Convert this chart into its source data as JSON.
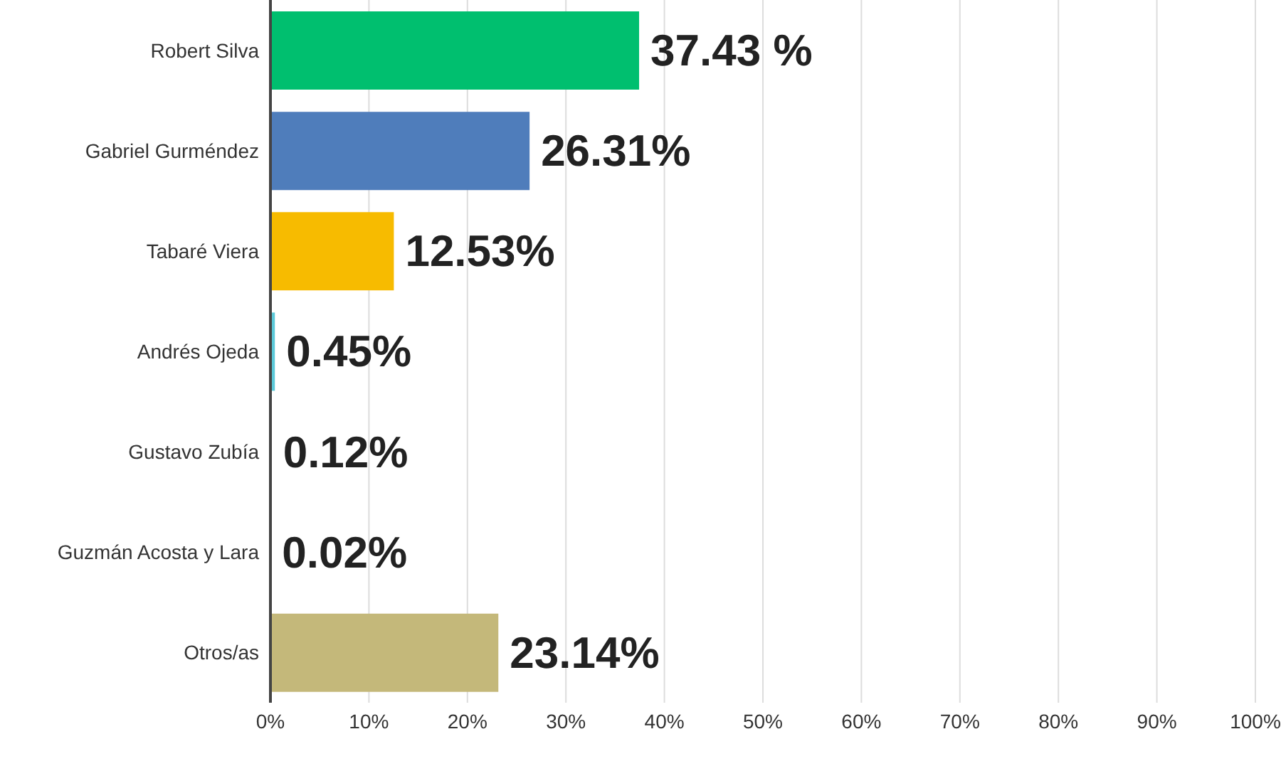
{
  "chart_data": {
    "type": "bar",
    "orientation": "horizontal",
    "categories": [
      "Robert Silva",
      "Gabriel Gurméndez",
      "Tabaré Viera",
      "Andrés Ojeda",
      "Gustavo Zubía",
      "Guzmán Acosta y Lara",
      "Otros/as"
    ],
    "values": [
      37.43,
      26.31,
      12.53,
      0.45,
      0.12,
      0.02,
      23.14
    ],
    "value_labels": [
      "37.43 %",
      "26.31%",
      "12.53%",
      "0.45%",
      "0.12%",
      "0.02%",
      "23.14%"
    ],
    "colors": [
      "#00bf6f",
      "#4f7dbb",
      "#f7bb00",
      "#5bc8d8",
      "#f28c50",
      "#9e9e9e",
      "#c4b87a"
    ],
    "xlim": [
      0,
      100
    ],
    "xticks": [
      {
        "value": 0,
        "label": "0%"
      },
      {
        "value": 10,
        "label": "10%"
      },
      {
        "value": 20,
        "label": "20%"
      },
      {
        "value": 30,
        "label": "30%"
      },
      {
        "value": 40,
        "label": "40%"
      },
      {
        "value": 50,
        "label": "50%"
      },
      {
        "value": 60,
        "label": "60%"
      },
      {
        "value": 70,
        "label": "70%"
      },
      {
        "value": 80,
        "label": "80%"
      },
      {
        "value": 90,
        "label": "90%"
      },
      {
        "value": 100,
        "label": "100%"
      }
    ],
    "grid": "x",
    "legend": false
  }
}
